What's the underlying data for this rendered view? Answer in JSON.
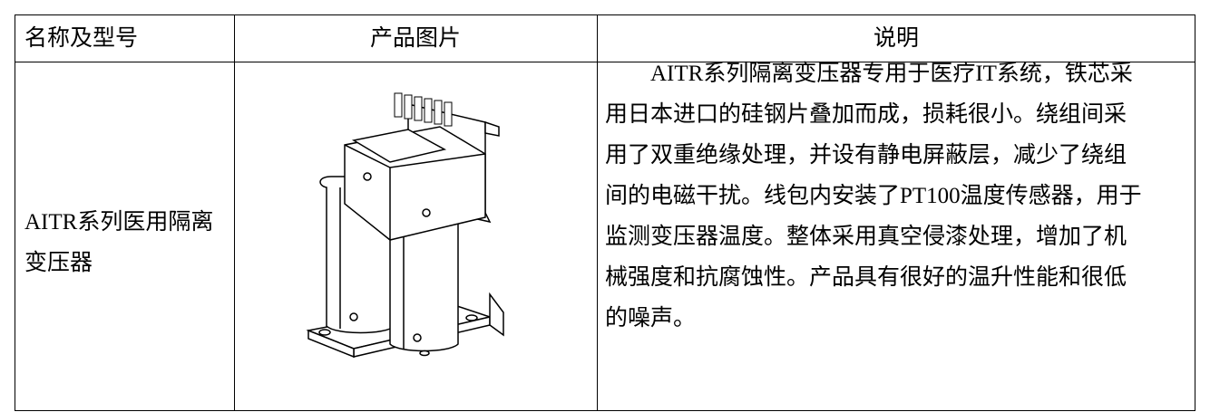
{
  "table": {
    "header": [
      "名称及型号",
      "产品图片",
      "说明"
    ],
    "rows": [
      {
        "name_lines": [
          "AITR系列医用隔离",
          "变压器"
        ],
        "description_lines": [
          "AITR系列隔离变压器专用于医疗IT系统，铁芯采",
          "用日本进口的硅钢片叠加而成，损耗很小。绕组间采",
          "用了双重绝缘处理，并设有静电屏蔽层，减少了绕组",
          "间的电磁干扰。线包内安装了PT100温度传感器，用于",
          "监测变压器温度。整体采用真空侵漆处理，增加了机",
          "械强度和抗腐蚀性。产品具有很好的温升性能和很低",
          "的噪声。"
        ]
      }
    ]
  }
}
